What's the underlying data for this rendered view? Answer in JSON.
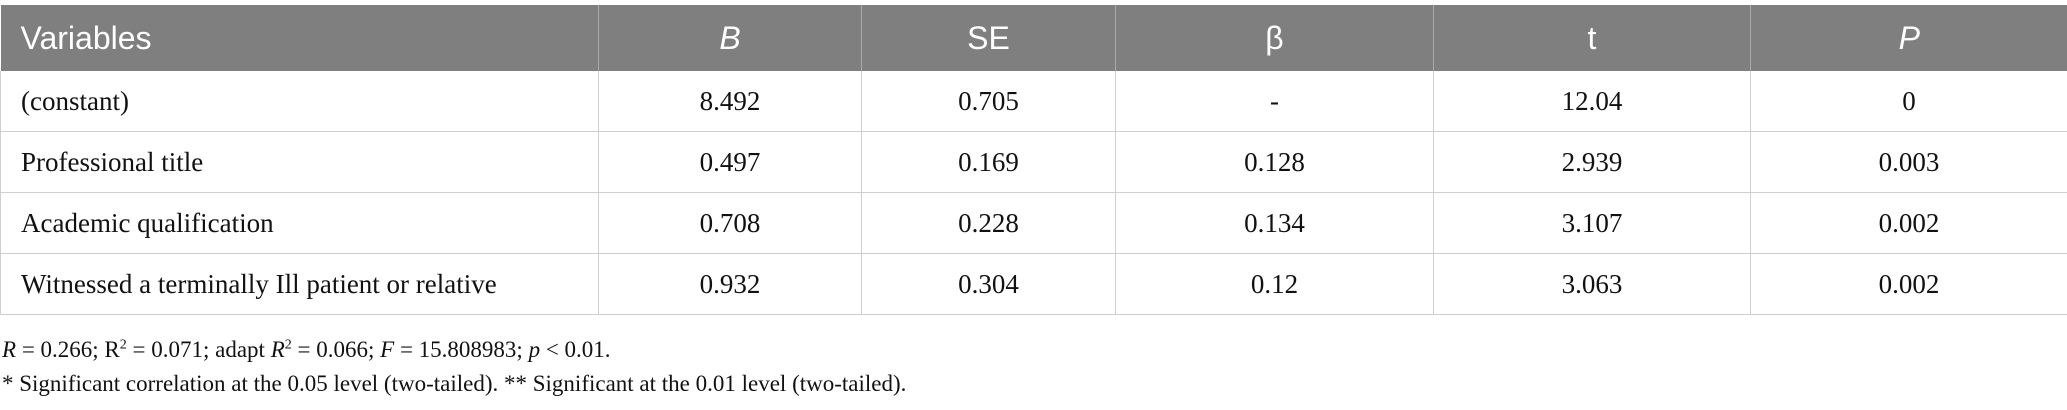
{
  "table": {
    "headers": [
      "Variables",
      "B",
      "SE",
      "β",
      "t",
      "P"
    ],
    "rows": [
      [
        "(constant)",
        "8.492",
        "0.705",
        "-",
        "12.04",
        "0"
      ],
      [
        "Professional title",
        "0.497",
        "0.169",
        "0.128",
        "2.939",
        "0.003"
      ],
      [
        "Academic qualification",
        "0.708",
        "0.228",
        "0.134",
        "3.107",
        "0.002"
      ],
      [
        "Witnessed a terminally Ill patient or relative",
        "0.932",
        "0.304",
        "0.12",
        "3.063",
        "0.002"
      ]
    ]
  },
  "notes": {
    "r_label": "R",
    "r_value": " = 0.266; R",
    "r2_sup": "2",
    "r2_value": " = 0.071; adapt ",
    "adapt_label": "R",
    "adapt_sup": "2",
    "adapt_value": " = 0.066; ",
    "f_label": "F",
    "f_value": " = 15.808983; ",
    "p_label": "p",
    "p_value": " < 0.01.",
    "line2": "* Significant correlation at the 0.05 level (two-tailed). ** Significant at the 0.01 level (two-tailed)."
  },
  "colors": {
    "header_bg": "#7f7f7f",
    "header_text": "#ffffff",
    "grid": "#cfcfcf"
  }
}
